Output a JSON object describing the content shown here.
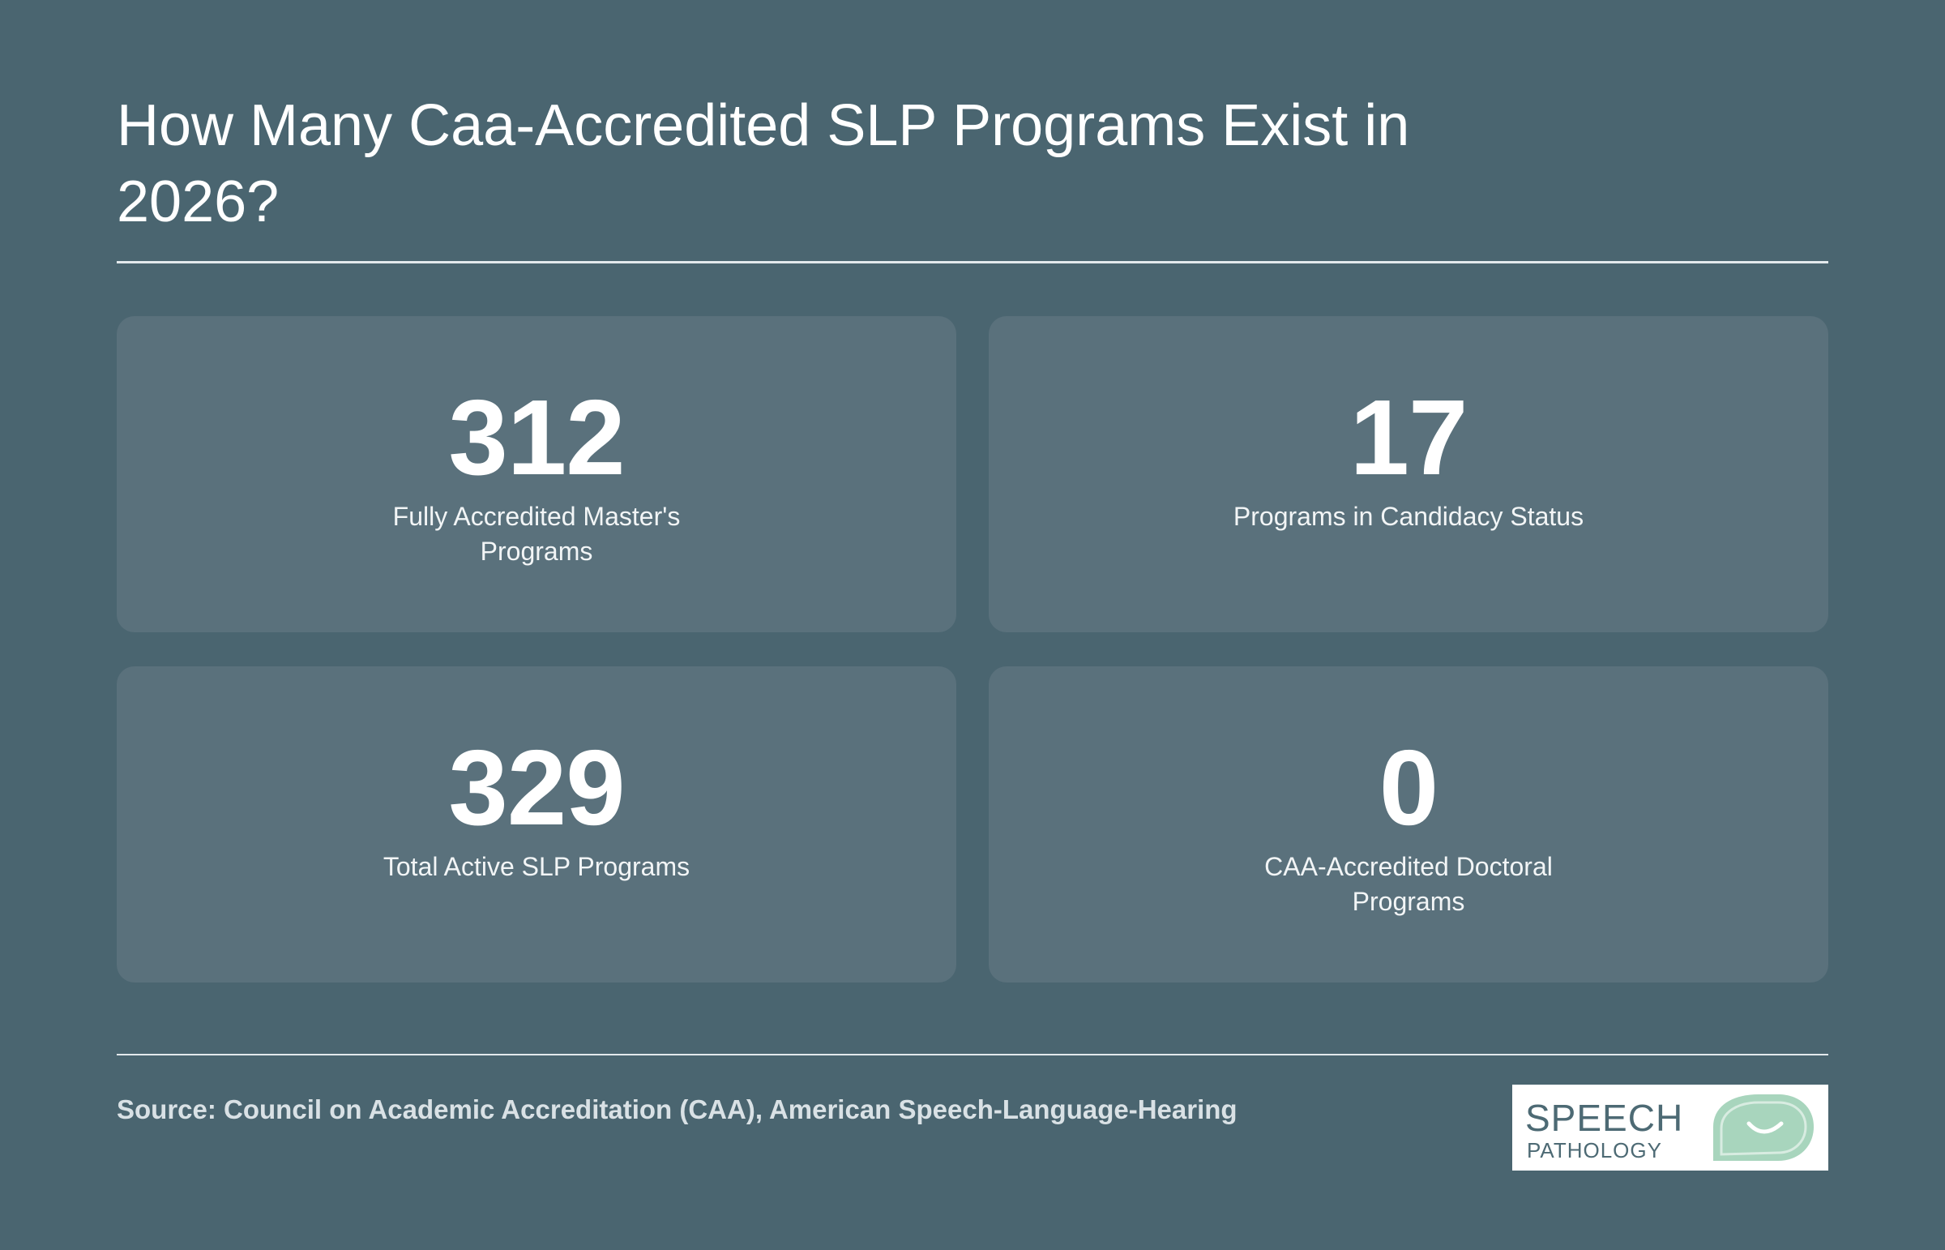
{
  "title": "How Many Caa-Accredited SLP Programs Exist in 2026?",
  "stats": [
    {
      "value": "312",
      "label": "Fully Accredited Master's Programs"
    },
    {
      "value": "17",
      "label": "Programs in Candidacy Status"
    },
    {
      "value": "329",
      "label": "Total Active SLP Programs"
    },
    {
      "value": "0",
      "label": "CAA-Accredited Doctoral Programs"
    }
  ],
  "source": "Source: Council on Academic Accreditation (CAA), American Speech-Language-Hearing",
  "logo": {
    "line1": "SPEECH",
    "line2": "PATHOLOGY",
    "icon": "speech-bubble-smile-icon",
    "accent_color": "#a8d5bd"
  },
  "colors": {
    "background": "#4a6570",
    "card": "#5a717c"
  }
}
